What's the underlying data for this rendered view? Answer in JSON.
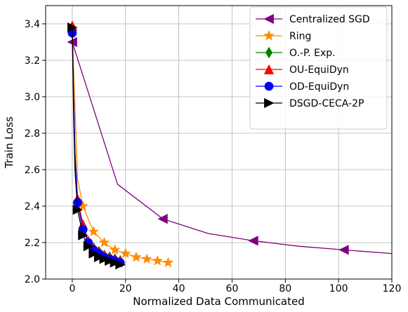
{
  "chart_data": {
    "type": "line",
    "xlabel": "Normalized Data Communicated",
    "ylabel": "Train Loss",
    "xlim": [
      -10,
      120
    ],
    "ylim": [
      2.0,
      3.5
    ],
    "xticks": [
      0,
      20,
      40,
      60,
      80,
      100,
      120
    ],
    "yticks": [
      2.0,
      2.2,
      2.4,
      2.6,
      2.8,
      3.0,
      3.2,
      3.4
    ],
    "grid": true,
    "legend_position": "top-right",
    "series": [
      {
        "name": "Centralized SGD",
        "color": "#800080",
        "marker": "triangle-left",
        "x": [
          0,
          17,
          34,
          51,
          68,
          85,
          102,
          120
        ],
        "y": [
          3.3,
          2.52,
          2.33,
          2.25,
          2.21,
          2.18,
          2.16,
          2.14
        ],
        "marker_indices": [
          0,
          2,
          4,
          6
        ]
      },
      {
        "name": "Ring",
        "color": "#ff8c00",
        "marker": "star",
        "x": [
          0,
          1,
          2,
          4,
          8,
          12,
          16,
          20,
          24,
          28,
          32,
          36
        ],
        "y": [
          3.36,
          2.95,
          2.55,
          2.4,
          2.26,
          2.2,
          2.16,
          2.14,
          2.12,
          2.11,
          2.1,
          2.09
        ],
        "marker_indices": [
          0,
          3,
          4,
          5,
          6,
          7,
          8,
          9,
          10,
          11
        ]
      },
      {
        "name": "O.-P. Exp.",
        "color": "#008000",
        "marker": "diamond",
        "x": [
          0,
          0.5,
          1,
          2,
          4,
          6,
          8,
          10,
          12,
          14,
          16,
          18
        ],
        "y": [
          3.35,
          3.0,
          2.7,
          2.42,
          2.28,
          2.2,
          2.17,
          2.15,
          2.13,
          2.12,
          2.11,
          2.1
        ],
        "marker_indices": [
          0,
          3,
          4,
          5,
          6,
          7,
          8,
          9,
          10,
          11
        ]
      },
      {
        "name": "OU-EquiDyn",
        "color": "#ff0000",
        "marker": "triangle-up",
        "x": [
          0,
          0.5,
          1,
          2,
          4,
          6,
          8,
          10,
          12,
          14,
          16,
          18
        ],
        "y": [
          3.39,
          3.0,
          2.7,
          2.44,
          2.3,
          2.21,
          2.17,
          2.15,
          2.13,
          2.12,
          2.11,
          2.1
        ],
        "marker_indices": [
          0,
          3,
          4,
          5,
          6,
          7,
          8,
          9,
          10,
          11
        ]
      },
      {
        "name": "OD-EquiDyn",
        "color": "#0000ff",
        "marker": "circle",
        "x": [
          0,
          0.5,
          1,
          2,
          4,
          6,
          8,
          10,
          12,
          14,
          16,
          18
        ],
        "y": [
          3.35,
          3.0,
          2.7,
          2.42,
          2.27,
          2.2,
          2.16,
          2.14,
          2.12,
          2.11,
          2.1,
          2.09
        ],
        "marker_indices": [
          0,
          3,
          4,
          5,
          6,
          7,
          8,
          9,
          10,
          11
        ]
      },
      {
        "name": "DSGD-CECA-2P",
        "color": "#000000",
        "marker": "triangle-right",
        "x": [
          0,
          0.5,
          1,
          2,
          4,
          6,
          8,
          10,
          12,
          14,
          16,
          18
        ],
        "y": [
          3.38,
          2.9,
          2.6,
          2.38,
          2.24,
          2.18,
          2.14,
          2.12,
          2.11,
          2.1,
          2.09,
          2.08
        ],
        "marker_indices": [
          0,
          3,
          4,
          5,
          6,
          7,
          8,
          9,
          10,
          11
        ]
      }
    ]
  }
}
